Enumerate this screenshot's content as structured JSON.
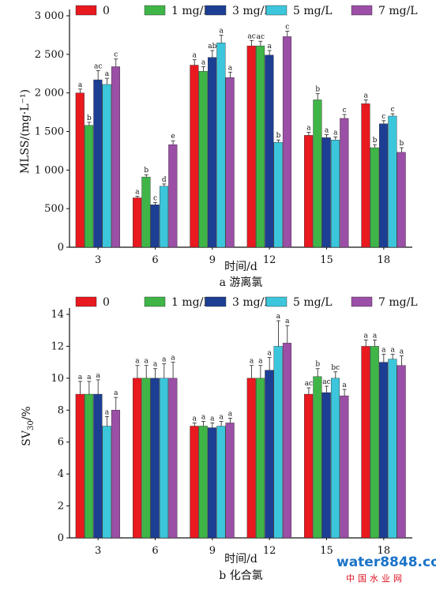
{
  "chart_data": [
    {
      "id": "a",
      "type": "bar",
      "caption": "a 游离氯",
      "xlabel": "时间/d",
      "ylabel": "MLSS/(mg·L⁻¹)",
      "categories": [
        "3",
        "6",
        "9",
        "12",
        "15",
        "18"
      ],
      "ylim": [
        0,
        3000
      ],
      "yticks": [
        0,
        500,
        1000,
        1500,
        2000,
        2500,
        3000
      ],
      "ytick_labels": [
        "0",
        "500",
        "1 000",
        "1 500",
        "2 000",
        "2 500",
        "3 000"
      ],
      "legend_position": "top",
      "series": [
        {
          "name": "0",
          "color": "#e8191f",
          "values": [
            2000,
            640,
            2360,
            2610,
            1450,
            1860
          ],
          "errors": [
            50,
            20,
            70,
            70,
            40,
            50
          ],
          "labels": [
            "a",
            "a",
            "a",
            "ac",
            "a",
            "a"
          ]
        },
        {
          "name": "1 mg/L",
          "color": "#3fb548",
          "values": [
            1580,
            910,
            2280,
            2610,
            1910,
            1290
          ],
          "errors": [
            40,
            30,
            60,
            60,
            80,
            40
          ],
          "labels": [
            "b",
            "b",
            "a",
            "ac",
            "b",
            "b"
          ]
        },
        {
          "name": "3 mg/L",
          "color": "#1c3f94",
          "values": [
            2170,
            550,
            2460,
            2490,
            1420,
            1600
          ],
          "errors": [
            120,
            30,
            90,
            60,
            40,
            40
          ],
          "labels": [
            "ac",
            "c",
            "ab",
            "a",
            "a",
            "c"
          ]
        },
        {
          "name": "5 mg/L",
          "color": "#3cc6dc",
          "values": [
            2110,
            790,
            2650,
            1360,
            1390,
            1700
          ],
          "errors": [
            80,
            30,
            100,
            30,
            40,
            30
          ],
          "labels": [
            "a",
            "d",
            "a",
            "b",
            "a",
            "c"
          ]
        },
        {
          "name": "7 mg/L",
          "color": "#9b4fa6",
          "values": [
            2340,
            1330,
            2200,
            2730,
            1670,
            1230
          ],
          "errors": [
            100,
            50,
            70,
            70,
            50,
            60
          ],
          "labels": [
            "c",
            "e",
            "a",
            "c",
            "c",
            "b"
          ]
        }
      ]
    },
    {
      "id": "b",
      "type": "bar",
      "caption": "b 化合氯",
      "xlabel": "时间/d",
      "ylabel": "SV30/%",
      "categories": [
        "3",
        "6",
        "9",
        "12",
        "15",
        "18"
      ],
      "ylim": [
        0,
        14
      ],
      "yticks": [
        0,
        2,
        4,
        6,
        8,
        10,
        12,
        14
      ],
      "ytick_labels": [
        "0",
        "2",
        "4",
        "6",
        "8",
        "10",
        "12",
        "14"
      ],
      "legend_position": "top",
      "series": [
        {
          "name": "0",
          "color": "#e8191f",
          "values": [
            9.0,
            10.0,
            7.0,
            10.0,
            9.0,
            12.0
          ],
          "errors": [
            0.8,
            0.8,
            0.2,
            0.8,
            0.4,
            0.4
          ],
          "labels": [
            "a",
            "a",
            "a",
            "a",
            "ac",
            "a"
          ]
        },
        {
          "name": "1 mg/L",
          "color": "#3fb548",
          "values": [
            9.0,
            10.0,
            7.0,
            10.0,
            10.1,
            12.0
          ],
          "errors": [
            0.8,
            0.8,
            0.3,
            0.8,
            0.5,
            0.4
          ],
          "labels": [
            "a",
            "a",
            "a",
            "a",
            "b",
            "a"
          ]
        },
        {
          "name": "3 mg/L",
          "color": "#1c3f94",
          "values": [
            9.0,
            10.0,
            6.9,
            10.5,
            9.1,
            11.0
          ],
          "errors": [
            0.9,
            0.6,
            0.3,
            0.8,
            0.4,
            0.5
          ],
          "labels": [
            "a",
            "a",
            "a",
            "a",
            "ac",
            "a"
          ]
        },
        {
          "name": "5 mg/L",
          "color": "#3cc6dc",
          "values": [
            7.0,
            10.0,
            7.0,
            12.0,
            10.0,
            11.2
          ],
          "errors": [
            0.6,
            0.9,
            0.3,
            1.6,
            0.4,
            0.3
          ],
          "labels": [
            "a",
            "a",
            "a",
            "a",
            "bc",
            "a"
          ]
        },
        {
          "name": "7 mg/L",
          "color": "#9b4fa6",
          "values": [
            8.0,
            10.0,
            7.2,
            12.2,
            8.9,
            10.8
          ],
          "errors": [
            0.8,
            1.0,
            0.3,
            1.1,
            0.4,
            0.6
          ],
          "labels": [
            "a",
            "a",
            "a",
            "a",
            "a",
            "a"
          ]
        }
      ]
    }
  ],
  "watermark": {
    "brand": "water8848.com",
    "subtitle": "中国水业网"
  }
}
